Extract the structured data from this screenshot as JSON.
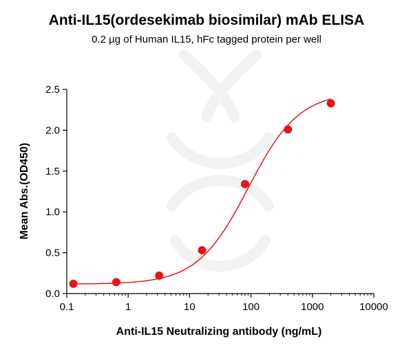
{
  "chart_data": {
    "type": "scatter",
    "title": "Anti-IL15(ordesekimab biosimilar) mAb ELISA",
    "subtitle": "0.2 µg of Human IL15, hFc tagged protein per well",
    "xlabel": "Anti-IL15 Neutralizing antibody (ng/mL)",
    "ylabel": "Mean Abs.(OD450)",
    "xscale": "log",
    "xlim": [
      0.1,
      10000
    ],
    "ylim": [
      0.0,
      2.5
    ],
    "xticks": [
      0.1,
      1,
      10,
      100,
      1000,
      10000
    ],
    "xtick_labels": [
      "0.1",
      "1",
      "10",
      "100",
      "1000",
      "10000"
    ],
    "yticks": [
      0.0,
      0.5,
      1.0,
      1.5,
      2.0,
      2.5
    ],
    "ytick_labels": [
      "0.0",
      "0.5",
      "1.0",
      "1.5",
      "2.0",
      "2.5"
    ],
    "grid": false,
    "legend": "none",
    "color": "#e8141b",
    "series": [
      {
        "x": [
          0.128,
          0.64,
          3.2,
          16,
          80,
          400,
          2000
        ],
        "y": [
          0.12,
          0.14,
          0.22,
          0.53,
          1.34,
          2.01,
          2.33
        ]
      }
    ],
    "fit": {
      "model": "4PL",
      "bottom": 0.115,
      "top": 2.47,
      "ec50": 90,
      "hill": 1.05
    }
  }
}
